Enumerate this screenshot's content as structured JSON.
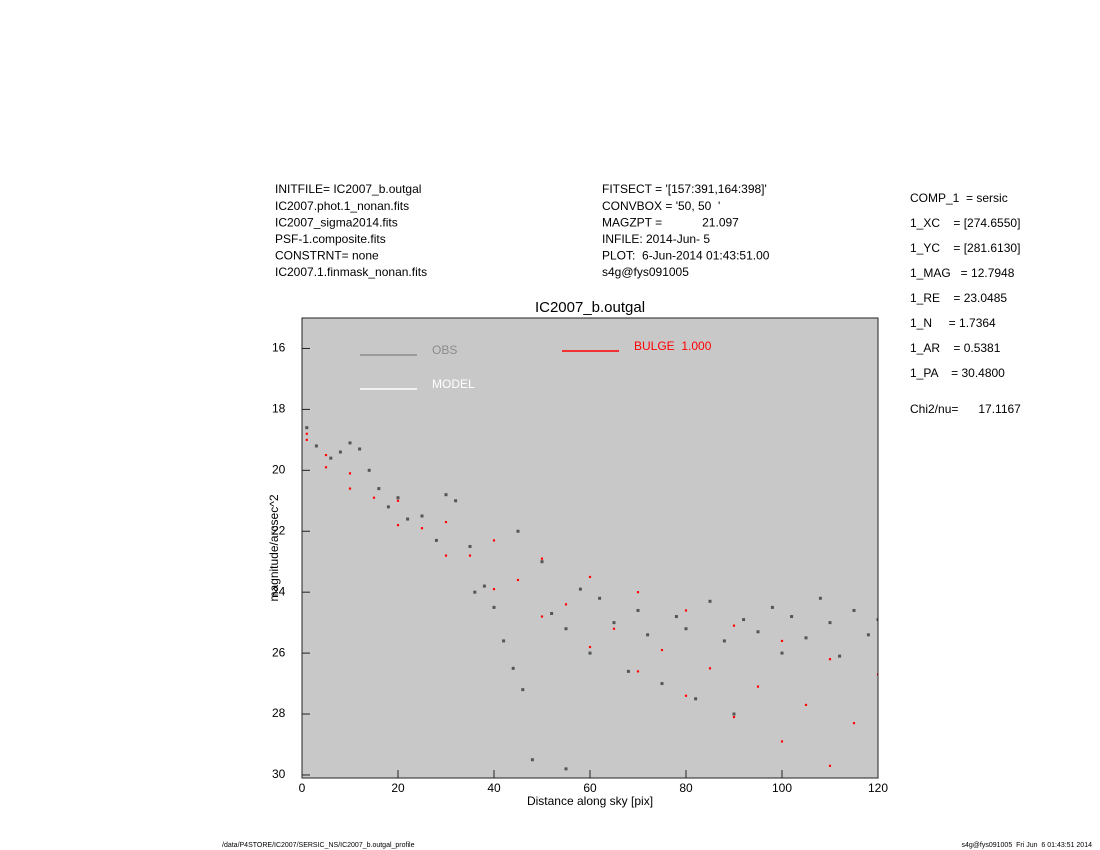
{
  "header": {
    "left": [
      "INITFILE= IC2007_b.outgal",
      "IC2007.phot.1_nonan.fits",
      "IC2007_sigma2014.fits",
      "PSF-1.composite.fits",
      "CONSTRNT= none",
      "IC2007.1.finmask_nonan.fits"
    ],
    "middle": [
      "FITSECT = '[157:391,164:398]'",
      "CONVBOX = '50, 50  '",
      "MAGZPT =            21.097",
      "INFILE: 2014-Jun- 5",
      "PLOT:  6-Jun-2014 01:43:51.00",
      "s4g@fys091005"
    ],
    "right": [
      "COMP_1  = sersic",
      "1_XC    = [274.6550]",
      "1_YC    = [281.6130]",
      "1_MAG   = 12.7948",
      "1_RE    = 23.0485",
      "1_N     = 1.7364",
      "1_AR    = 0.5381",
      "1_PA    = 30.4800"
    ],
    "chi2": "Chi2/nu=      17.1167"
  },
  "footer": {
    "left": "/data/P4STORE/IC2007/SERSIC_NS/IC2007_b.outgal_profile",
    "right": "s4g@fys091005  Fri Jun  6 01:43:51 2014"
  },
  "chart_data": {
    "type": "scatter",
    "title": "IC2007_b.outgal",
    "x_label": "Distance along sky [pix]",
    "y_label": "magnitude/arcsec^2",
    "xlim": [
      0,
      120
    ],
    "xticks": [
      0,
      20,
      40,
      60,
      80,
      100,
      120
    ],
    "ylim": [
      15,
      30.1
    ],
    "yticks": [
      16,
      18,
      20,
      22,
      24,
      26,
      28,
      30
    ],
    "y_inverted": true,
    "background": "#c8c8c8",
    "series": [
      {
        "name": "OBS",
        "color": "#555555",
        "legend_color": "#8c8c8c",
        "x": [
          1,
          3,
          6,
          8,
          10,
          12,
          14,
          16,
          18,
          20,
          22,
          25,
          28,
          30,
          32,
          35,
          38,
          40,
          42,
          44,
          46,
          45,
          50,
          52,
          55,
          58,
          60,
          62,
          65,
          68,
          70,
          72,
          75,
          78,
          80,
          82,
          85,
          88,
          90,
          92,
          95,
          98,
          100,
          102,
          105,
          108,
          110,
          112,
          115,
          118,
          120,
          48,
          55,
          36
        ],
        "values": [
          18.6,
          19.2,
          19.6,
          19.4,
          19.1,
          19.3,
          20.0,
          20.6,
          21.2,
          20.9,
          21.6,
          21.5,
          22.3,
          20.8,
          21.0,
          22.5,
          23.8,
          24.5,
          25.6,
          26.5,
          27.2,
          22.0,
          23.0,
          24.7,
          25.2,
          23.9,
          26.0,
          24.2,
          25.0,
          26.6,
          24.6,
          25.4,
          27.0,
          24.8,
          25.2,
          27.5,
          24.3,
          25.6,
          28.0,
          24.9,
          25.3,
          24.5,
          26.0,
          24.8,
          25.5,
          24.2,
          25.0,
          26.1,
          24.6,
          25.4,
          24.9,
          29.5,
          29.8,
          24.0
        ]
      },
      {
        "name": "MODEL",
        "color": "#ffffff",
        "x": [
          1,
          5,
          10,
          20,
          30,
          40,
          50,
          60,
          70,
          80,
          90,
          100,
          110,
          120,
          1,
          5,
          10,
          20,
          30,
          40,
          50,
          60,
          70,
          80,
          90,
          100,
          110,
          15,
          25,
          35,
          45,
          55,
          65,
          75,
          85,
          95,
          105,
          115
        ],
        "values": [
          18.8,
          19.5,
          20.1,
          21.0,
          21.7,
          22.3,
          22.9,
          23.5,
          24.0,
          24.6,
          25.1,
          25.6,
          26.2,
          26.7,
          19.0,
          19.9,
          20.6,
          21.8,
          22.8,
          23.9,
          24.8,
          25.8,
          26.6,
          27.4,
          28.1,
          28.9,
          29.7,
          20.9,
          21.9,
          22.8,
          23.6,
          24.4,
          25.2,
          25.9,
          26.5,
          27.1,
          27.7,
          28.3
        ]
      },
      {
        "name": "BULGE  1.000",
        "color": "#ff0000",
        "x": [
          1,
          5,
          10,
          20,
          30,
          40,
          50,
          60,
          70,
          80,
          90,
          100,
          110,
          120,
          1,
          5,
          10,
          20,
          30,
          40,
          50,
          60,
          70,
          80,
          90,
          100,
          110,
          15,
          25,
          35,
          45,
          55,
          65,
          75,
          85,
          95,
          105,
          115
        ],
        "values": [
          18.8,
          19.5,
          20.1,
          21.0,
          21.7,
          22.3,
          22.9,
          23.5,
          24.0,
          24.6,
          25.1,
          25.6,
          26.2,
          26.7,
          19.0,
          19.9,
          20.6,
          21.8,
          22.8,
          23.9,
          24.8,
          25.8,
          26.6,
          27.4,
          28.1,
          28.9,
          29.7,
          20.9,
          21.9,
          22.8,
          23.6,
          24.4,
          25.2,
          25.9,
          26.5,
          27.1,
          27.7,
          28.3
        ]
      }
    ]
  }
}
